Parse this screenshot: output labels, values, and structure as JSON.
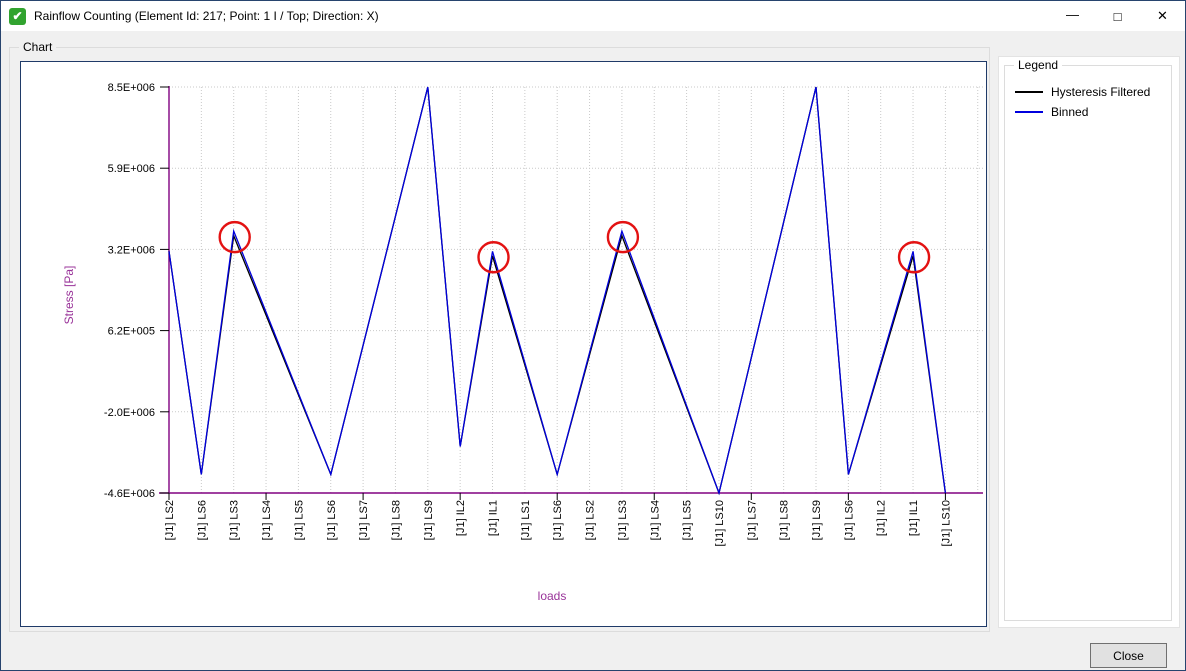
{
  "window": {
    "title": "Rainflow Counting (Element Id: 217; Point: 1 I / Top; Direction: X)",
    "icon": "green-check-app-icon",
    "icon_glyph": "✔",
    "icon_color": "#31a32f",
    "controls": {
      "minimize": "—",
      "maximize": "□",
      "close": "✕"
    }
  },
  "chart_group": {
    "label": "Chart"
  },
  "legend": {
    "title": "Legend",
    "entries": [
      {
        "label": "Hysteresis Filtered",
        "color": "#000000"
      },
      {
        "label": "Binned",
        "color": "#0000dd"
      }
    ]
  },
  "close_button": {
    "label": "Close"
  },
  "chart_data": {
    "type": "line",
    "xlabel": "loads",
    "ylabel": "Stress [Pa]",
    "axis_color": "#800080",
    "axis_label_color": "#993399",
    "grid_color": "#c9c9c9",
    "grid_style": "dotted",
    "ylim": [
      -4600000,
      8500000
    ],
    "y_tick_labels": [
      "8.5E+006",
      "5.9E+006",
      "3.2E+006",
      "6.2E+005",
      "-2.0E+006",
      "-4.6E+006"
    ],
    "categories": [
      "[J1] LS2",
      "[J1] LS6",
      "[J1] LS3",
      "[J1] LS4",
      "[J1] LS5",
      "[J1] LS6",
      "[J1] LS7",
      "[J1] LS8",
      "[J1] LS9",
      "[J1] IL2",
      "[J1] IL1",
      "[J1] LS1",
      "[J1] LS6",
      "[J1] LS2",
      "[J1] LS3",
      "[J1] LS4",
      "[J1] LS5",
      "[J1] LS10",
      "[J1] LS7",
      "[J1] LS8",
      "[J1] LS9",
      "[J1] LS6",
      "[J1] IL2",
      "[J1] IL1",
      "[J1] LS10"
    ],
    "series": [
      {
        "name": "Hysteresis Filtered",
        "color": "#000000",
        "values": [
          3200000,
          -4000000,
          3700000,
          1133333,
          -1433333,
          -4000000,
          166667,
          4333333,
          8500000,
          -3100000,
          3050000,
          -475000,
          -4000000,
          -150000,
          3700000,
          933333,
          -1833333,
          -4600000,
          -233333,
          4133333,
          8500000,
          -4000000,
          -475000,
          3050000,
          -4600000
        ]
      },
      {
        "name": "Binned",
        "color": "#0000dd",
        "values": [
          3200000,
          -4000000,
          3850000,
          1233333,
          -1383333,
          -4000000,
          166667,
          4333333,
          8500000,
          -3100000,
          3200000,
          -400000,
          -4000000,
          -75000,
          3850000,
          1033333,
          -1783333,
          -4600000,
          -233333,
          4133333,
          8500000,
          -4000000,
          -400000,
          3200000,
          -4600000
        ]
      }
    ],
    "highlights": {
      "indices": [
        2,
        10,
        14,
        23
      ],
      "color": "#e31212",
      "radius": 15
    },
    "legend_position": "right-panel"
  }
}
